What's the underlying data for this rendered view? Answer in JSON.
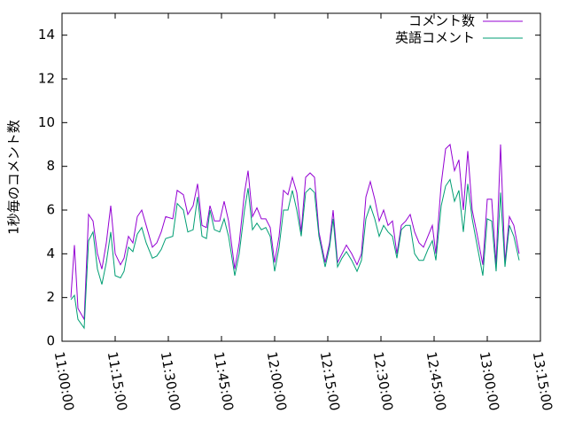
{
  "chart_data": {
    "type": "line",
    "y_label": "1秒毎のコメント数",
    "x": [
      "11:02:30",
      "11:03:30",
      "11:04:30",
      "11:06:15",
      "11:07:30",
      "11:08:45",
      "11:10:00",
      "11:11:15",
      "11:12:30",
      "11:13:45",
      "11:15:00",
      "11:16:30",
      "11:17:30",
      "11:18:45",
      "11:20:00",
      "11:21:15",
      "11:22:30",
      "11:23:45",
      "11:25:30",
      "11:26:45",
      "11:28:00",
      "11:29:15",
      "11:31:15",
      "11:32:30",
      "11:34:15",
      "11:35:30",
      "11:37:00",
      "11:38:15",
      "11:39:30",
      "11:40:45",
      "11:41:45",
      "11:43:00",
      "11:44:30",
      "11:45:45",
      "11:47:00",
      "11:48:45",
      "11:50:00",
      "11:51:30",
      "11:52:30",
      "11:53:45",
      "11:55:00",
      "11:56:15",
      "11:57:30",
      "11:58:45",
      "12:00:00",
      "12:01:15",
      "12:02:30",
      "12:03:45",
      "12:05:00",
      "12:06:15",
      "12:07:30",
      "12:08:45",
      "12:10:00",
      "12:11:15",
      "12:12:30",
      "12:14:15",
      "12:15:30",
      "12:16:30",
      "12:17:45",
      "12:19:00",
      "12:20:15",
      "12:21:45",
      "12:23:15",
      "12:24:30",
      "12:25:45",
      "12:27:00",
      "12:28:15",
      "12:29:30",
      "12:30:45",
      "12:32:00",
      "12:33:15",
      "12:34:30",
      "12:35:45",
      "12:37:00",
      "12:38:15",
      "12:39:30",
      "12:40:45",
      "12:42:00",
      "12:43:15",
      "12:44:30",
      "12:45:30",
      "12:47:00",
      "12:48:15",
      "12:49:30",
      "12:50:45",
      "12:52:00",
      "12:53:15",
      "12:54:30",
      "12:55:45",
      "12:57:00",
      "12:58:45",
      "13:00:00",
      "13:01:15",
      "13:02:30",
      "13:03:45",
      "13:05:00",
      "13:06:15",
      "13:07:30",
      "13:09:00"
    ],
    "series": [
      {
        "name": "コメント数",
        "color": "#9400d3",
        "values": [
          2.0,
          4.4,
          1.5,
          1.0,
          5.8,
          5.5,
          4.0,
          3.3,
          4.5,
          6.2,
          4.0,
          3.5,
          3.8,
          4.8,
          4.5,
          5.7,
          6.0,
          5.3,
          4.3,
          4.5,
          5.0,
          5.7,
          5.6,
          6.9,
          6.7,
          5.8,
          6.2,
          7.2,
          5.3,
          5.2,
          6.2,
          5.5,
          5.5,
          6.4,
          5.5,
          3.3,
          4.5,
          6.8,
          7.8,
          5.7,
          6.1,
          5.6,
          5.6,
          5.2,
          3.6,
          4.8,
          6.9,
          6.7,
          7.5,
          6.8,
          5.0,
          7.5,
          7.7,
          7.5,
          5.0,
          3.6,
          4.5,
          6.0,
          3.6,
          4.0,
          4.4,
          4.0,
          3.5,
          4.0,
          6.6,
          7.3,
          6.5,
          5.5,
          6.0,
          5.3,
          5.5,
          4.0,
          5.3,
          5.5,
          5.8,
          5.0,
          4.5,
          4.3,
          4.8,
          5.3,
          4.0,
          7.2,
          8.8,
          9.0,
          7.8,
          8.3,
          6.0,
          8.7,
          6.0,
          5.0,
          3.5,
          6.5,
          6.5,
          3.5,
          9.0,
          3.6,
          5.7,
          5.3,
          4.0
        ]
      },
      {
        "name": "英語コメント",
        "color": "#009e73",
        "values": [
          1.9,
          2.1,
          1.0,
          0.6,
          4.6,
          5.0,
          3.3,
          2.6,
          3.6,
          5.0,
          3.0,
          2.9,
          3.2,
          4.3,
          4.1,
          4.9,
          5.2,
          4.5,
          3.8,
          3.9,
          4.2,
          4.7,
          4.8,
          6.3,
          6.0,
          5.0,
          5.1,
          6.6,
          4.8,
          4.7,
          6.0,
          5.1,
          5.0,
          5.6,
          4.8,
          3.0,
          4.0,
          6.0,
          7.0,
          5.1,
          5.4,
          5.1,
          5.2,
          4.8,
          3.2,
          4.3,
          6.0,
          6.0,
          6.9,
          6.0,
          4.8,
          6.8,
          7.0,
          6.8,
          4.8,
          3.4,
          4.3,
          5.6,
          3.4,
          3.8,
          4.1,
          3.7,
          3.2,
          3.7,
          5.6,
          6.2,
          5.6,
          4.8,
          5.3,
          5.0,
          4.8,
          3.8,
          5.1,
          5.3,
          5.3,
          4.0,
          3.7,
          3.7,
          4.2,
          4.6,
          3.7,
          6.2,
          7.1,
          7.4,
          6.4,
          6.9,
          5.0,
          7.2,
          5.6,
          4.5,
          3.0,
          5.6,
          5.5,
          3.2,
          6.8,
          3.4,
          5.3,
          4.8,
          3.7
        ]
      }
    ],
    "xlim": [
      "11:00:00",
      "13:15:00"
    ],
    "xticks": [
      "11:00:00",
      "11:15:00",
      "11:30:00",
      "11:45:00",
      "12:00:00",
      "12:15:00",
      "12:30:00",
      "12:45:00",
      "13:00:00",
      "13:15:00"
    ],
    "ylim": [
      0,
      15
    ],
    "yticks": [
      0,
      2,
      4,
      6,
      8,
      10,
      12,
      14
    ],
    "legend": "top-right"
  }
}
